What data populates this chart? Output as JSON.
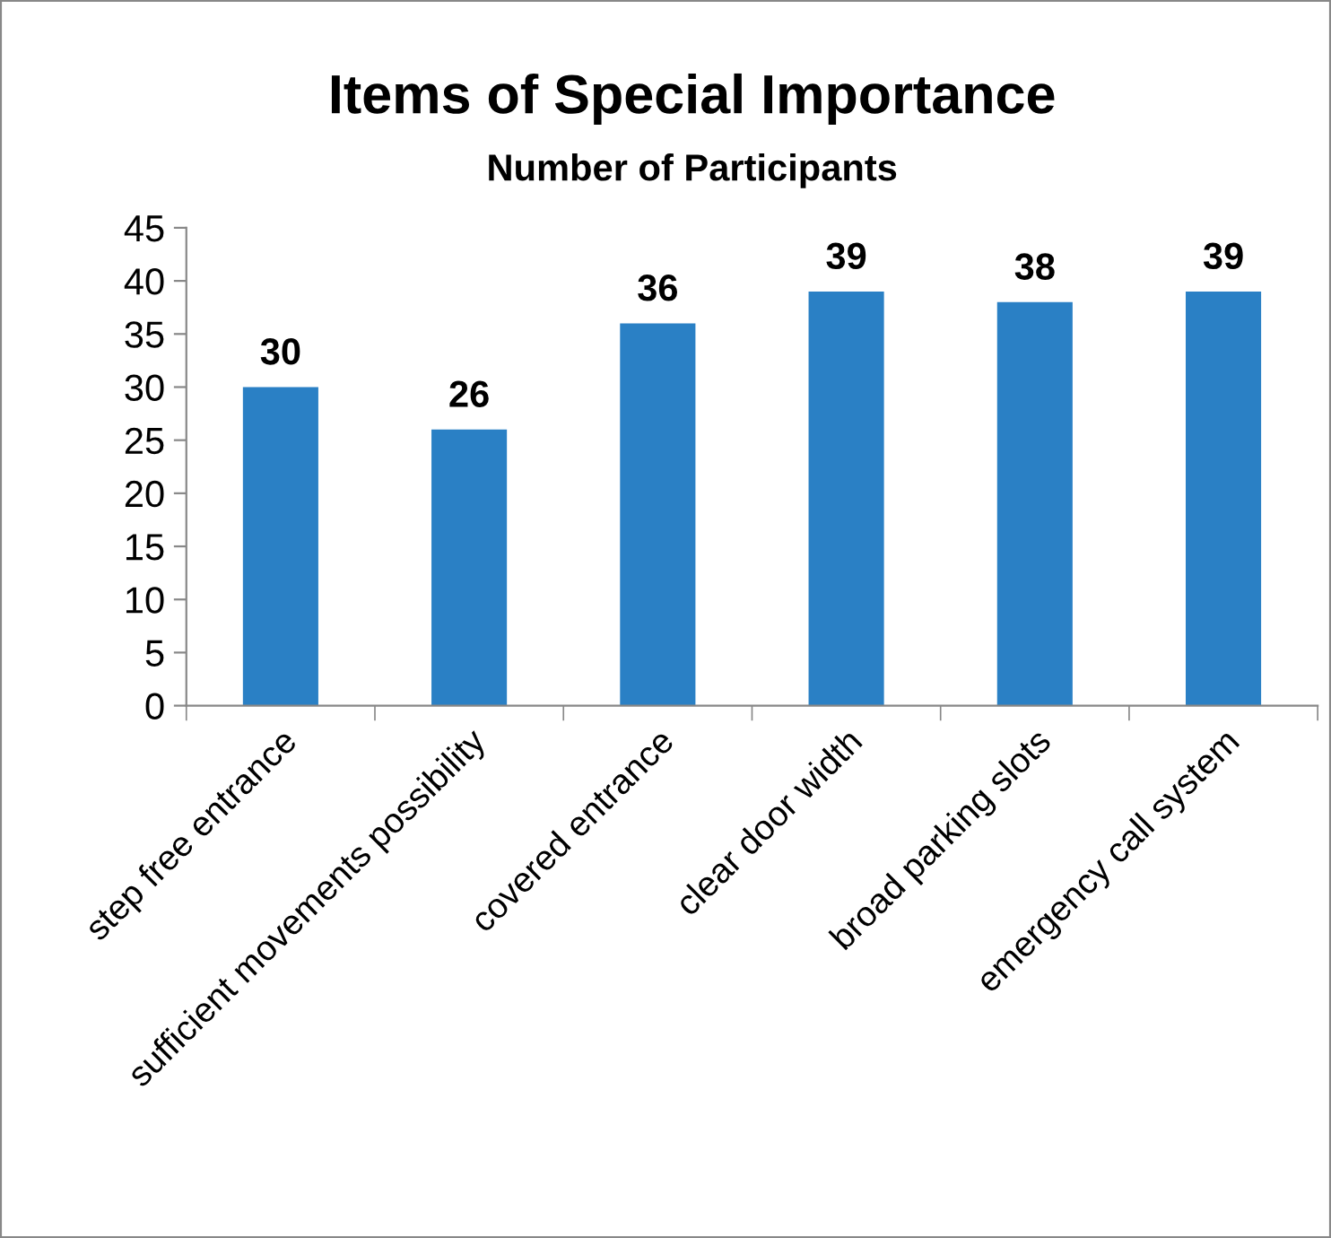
{
  "chart_data": {
    "type": "bar",
    "title": "Items of Special Importance",
    "subtitle": "Number of Participants",
    "categories": [
      "step free entrance",
      "sufficient movements possibility",
      "covered entrance",
      "clear door width",
      "broad parking slots",
      "emergency call system"
    ],
    "values": [
      30,
      26,
      36,
      39,
      38,
      39
    ],
    "color": "#2a80c5",
    "ylim": [
      0,
      45
    ],
    "yticks": [
      0,
      5,
      10,
      15,
      20,
      25,
      30,
      35,
      40,
      45
    ],
    "grid": false,
    "data_labels": true
  }
}
